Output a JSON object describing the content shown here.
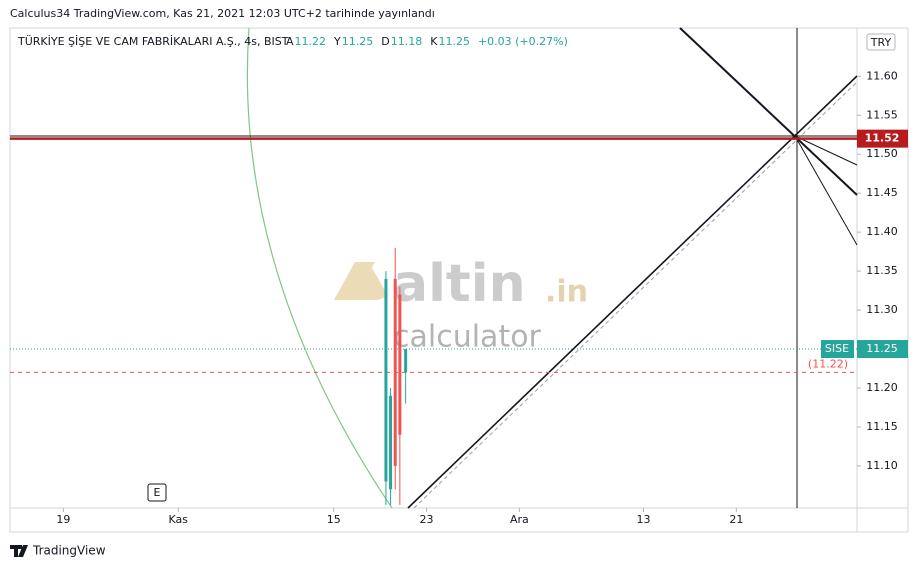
{
  "header": {
    "published": "Calculus34 TradingView.com, Kas 21, 2021 12:03 UTC+2 tarihinde yayınlandı"
  },
  "chart_data": {
    "type": "candlestick",
    "legend": {
      "symbol": "TÜRKİYE ŞİŞE VE CAM FABRİKALARI A.Ş., 4s, BIST",
      "open_label": "A",
      "high_label": "Y",
      "low_label": "D",
      "close_label": "K",
      "change": "+0.03 (+0.27%)"
    },
    "currency": "TRY",
    "ylim": [
      11.046,
      11.662
    ],
    "yticks": [
      {
        "value": 11.1,
        "label": "11.10"
      },
      11.15,
      {
        "value": 11.2,
        "label": "11.20"
      },
      11.25,
      {
        "value": 11.3,
        "label": "11.30"
      },
      11.35,
      {
        "value": 11.4,
        "label": "11.40"
      },
      11.45,
      {
        "value": 11.5,
        "label": "11.50"
      },
      11.55,
      {
        "value": 11.6,
        "label": "11.60"
      }
    ],
    "xlim": [
      -4.6,
      68.4
    ],
    "xticks": [
      {
        "value": 0,
        "label": "19"
      },
      {
        "value": 9.9,
        "label": "Kas"
      },
      {
        "value": 23.3,
        "label": "15"
      },
      {
        "value": 31.3,
        "label": "23"
      },
      {
        "value": 39.3,
        "label": "Ara"
      },
      {
        "value": 50,
        "label": "13"
      },
      {
        "value": 58,
        "label": "21"
      }
    ],
    "up_color": "#26a69a",
    "down_color": "#ef5350",
    "candles": [
      {
        "x": 27.8,
        "open": 11.08,
        "high": 11.35,
        "low": 11.05,
        "close": 11.34
      },
      {
        "x": 28.2,
        "open": 11.07,
        "high": 11.2,
        "low": 11.05,
        "close": 11.19
      },
      {
        "x": 28.6,
        "open": 11.34,
        "high": 11.38,
        "low": 11.07,
        "close": 11.1
      },
      {
        "x": 29.0,
        "open": 11.32,
        "high": 11.33,
        "low": 11.05,
        "close": 11.14
      },
      {
        "x": 29.5,
        "open": 11.22,
        "high": 11.25,
        "low": 11.18,
        "close": 11.25
      }
    ],
    "levels": [
      {
        "value": 11.52,
        "color": "#b71c1c"
      },
      {
        "value": 11.22,
        "label": "(11.22)",
        "color": "#ef5350"
      }
    ],
    "last_price": {
      "symbol": "SISE",
      "value": 11.25,
      "color": "#26a69a"
    },
    "event_marker": "E"
  },
  "watermark": {
    "brand": "altin",
    "tld": ".in",
    "sub": "calculator"
  },
  "footer": {
    "brand": "TradingView"
  }
}
